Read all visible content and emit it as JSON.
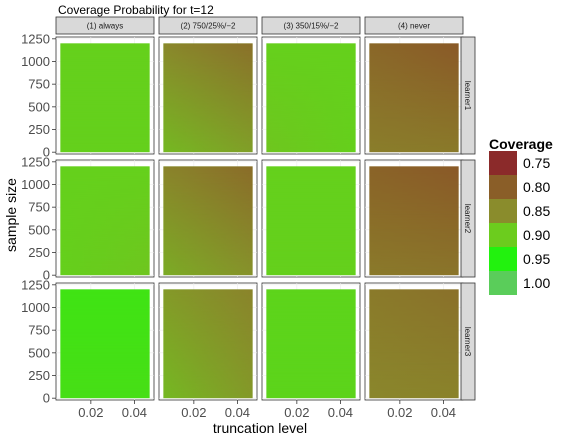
{
  "chart_data": {
    "type": "heatmap",
    "title": "Coverage Probability for t=12",
    "xlabel": "truncation level",
    "ylabel": "sample size",
    "columns": [
      "(1) always",
      "(2) 750/25%/−2",
      "(3) 350/15%/−2",
      "(4) never"
    ],
    "rows": [
      "learner1",
      "learner2",
      "learner3"
    ],
    "x_ticks": [
      "0.02",
      "0.04"
    ],
    "x_tick_values": [
      0.02,
      0.04
    ],
    "xlim": [
      0.004,
      0.049
    ],
    "x_range": [
      0.006,
      0.047
    ],
    "y_ticks": [
      "0",
      "250",
      "500",
      "750",
      "1000",
      "1250"
    ],
    "y_tick_values": [
      0,
      250,
      500,
      750,
      1000,
      1250
    ],
    "ylim": [
      -20,
      1270
    ],
    "y_range": [
      0,
      1200
    ],
    "legend": {
      "title": "Coverage",
      "labels": [
        "0.75",
        "0.80",
        "0.85",
        "0.90",
        "0.95",
        "1.00"
      ],
      "values": [
        0.75,
        0.8,
        0.85,
        0.9,
        0.95,
        1.0
      ],
      "colors": [
        "#8b2a2a",
        "#8a5e28",
        "#8a8c2c",
        "#6ccc1e",
        "#22f20e",
        "#5acd5a"
      ]
    },
    "panels": [
      {
        "row": "learner1",
        "column": "(1) always",
        "corners": {
          "bottom_left": 0.905,
          "bottom_right": 0.905,
          "top_left": 0.905,
          "top_right": 0.905
        }
      },
      {
        "row": "learner1",
        "column": "(2) 750/25%/−2",
        "corners": {
          "bottom_left": 0.885,
          "bottom_right": 0.865,
          "top_left": 0.845,
          "top_right": 0.82
        }
      },
      {
        "row": "learner1",
        "column": "(3) 350/15%/−2",
        "corners": {
          "bottom_left": 0.895,
          "bottom_right": 0.905,
          "top_left": 0.905,
          "top_right": 0.905
        }
      },
      {
        "row": "learner1",
        "column": "(4) never",
        "corners": {
          "bottom_left": 0.835,
          "bottom_right": 0.83,
          "top_left": 0.81,
          "top_right": 0.795
        }
      },
      {
        "row": "learner2",
        "column": "(1) always",
        "corners": {
          "bottom_left": 0.905,
          "bottom_right": 0.895,
          "top_left": 0.905,
          "top_right": 0.905
        }
      },
      {
        "row": "learner2",
        "column": "(2) 750/25%/−2",
        "corners": {
          "bottom_left": 0.875,
          "bottom_right": 0.855,
          "top_left": 0.84,
          "top_right": 0.815
        }
      },
      {
        "row": "learner2",
        "column": "(3) 350/15%/−2",
        "corners": {
          "bottom_left": 0.905,
          "bottom_right": 0.905,
          "top_left": 0.905,
          "top_right": 0.905
        }
      },
      {
        "row": "learner2",
        "column": "(4) never",
        "corners": {
          "bottom_left": 0.83,
          "bottom_right": 0.825,
          "top_left": 0.805,
          "top_right": 0.795
        }
      },
      {
        "row": "learner3",
        "column": "(1) always",
        "corners": {
          "bottom_left": 0.925,
          "bottom_right": 0.925,
          "top_left": 0.93,
          "top_right": 0.93
        }
      },
      {
        "row": "learner3",
        "column": "(2) 750/25%/−2",
        "corners": {
          "bottom_left": 0.885,
          "bottom_right": 0.86,
          "top_left": 0.86,
          "top_right": 0.84
        }
      },
      {
        "row": "learner3",
        "column": "(3) 350/15%/−2",
        "corners": {
          "bottom_left": 0.91,
          "bottom_right": 0.91,
          "top_left": 0.91,
          "top_right": 0.91
        }
      },
      {
        "row": "learner3",
        "column": "(4) never",
        "corners": {
          "bottom_left": 0.845,
          "bottom_right": 0.84,
          "top_left": 0.83,
          "top_right": 0.82
        }
      }
    ]
  }
}
